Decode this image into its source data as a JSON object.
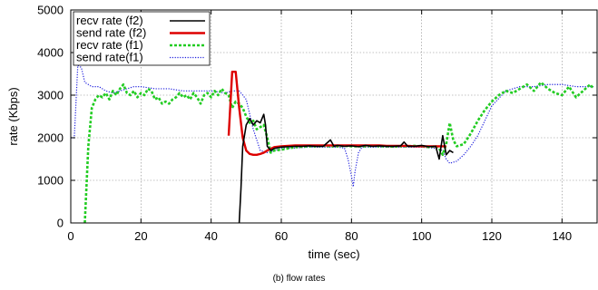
{
  "chart_data": {
    "type": "line",
    "title": "",
    "xlabel": "time (sec)",
    "ylabel": "rate (Kbps)",
    "xlim": [
      0,
      150
    ],
    "ylim": [
      0,
      5000
    ],
    "xticks": [
      0,
      20,
      40,
      60,
      80,
      100,
      120,
      140
    ],
    "yticks": [
      0,
      1000,
      2000,
      3000,
      4000,
      5000
    ],
    "grid": true,
    "legend_position": "top-left",
    "series": [
      {
        "name": "recv rate (f2)",
        "color": "#000000",
        "style": "solid",
        "x": [
          48,
          48.5,
          49,
          50,
          51,
          52,
          53,
          54,
          55,
          55.5,
          56,
          57,
          58,
          60,
          62,
          64,
          66,
          68,
          70,
          72,
          74,
          75,
          76,
          78,
          80,
          82,
          84,
          86,
          88,
          90,
          92,
          94,
          95,
          96,
          98,
          100,
          102,
          104,
          105,
          106,
          107,
          108,
          109
        ],
        "y": [
          0,
          800,
          1800,
          2300,
          2450,
          2300,
          2400,
          2350,
          2550,
          2300,
          1800,
          1700,
          1750,
          1780,
          1790,
          1800,
          1800,
          1810,
          1800,
          1800,
          1950,
          1800,
          1820,
          1800,
          1810,
          1790,
          1820,
          1800,
          1810,
          1800,
          1800,
          1810,
          1900,
          1800,
          1800,
          1820,
          1790,
          1800,
          1500,
          2050,
          1600,
          1700,
          1650
        ]
      },
      {
        "name": "send rate (f2)",
        "color": "#dd0000",
        "style": "solid",
        "x": [
          45,
          46,
          47,
          48,
          49,
          50,
          51,
          52,
          53,
          54,
          55,
          56,
          58,
          60,
          62,
          64,
          66,
          68,
          70,
          72,
          74,
          76,
          78,
          80,
          82,
          84,
          86,
          88,
          90,
          92,
          94,
          96,
          98,
          100,
          102,
          104,
          106,
          107
        ],
        "y": [
          2050,
          3550,
          3550,
          2700,
          2000,
          1700,
          1620,
          1600,
          1600,
          1620,
          1650,
          1700,
          1780,
          1800,
          1810,
          1820,
          1820,
          1820,
          1820,
          1820,
          1820,
          1820,
          1820,
          1820,
          1820,
          1820,
          1820,
          1820,
          1810,
          1810,
          1810,
          1810,
          1800,
          1800,
          1800,
          1800,
          1800,
          1800
        ]
      },
      {
        "name": "recv rate (f1)",
        "color": "#22cc22",
        "style": "dotted",
        "x": [
          4,
          5,
          6,
          7,
          8,
          9,
          10,
          11,
          12,
          13,
          14,
          15,
          16,
          17,
          18,
          19,
          20,
          21,
          22,
          23,
          24,
          25,
          26,
          27,
          28,
          29,
          30,
          31,
          32,
          33,
          34,
          35,
          36,
          37,
          38,
          39,
          40,
          41,
          42,
          43,
          44,
          45,
          46,
          47,
          48,
          49,
          50,
          51,
          52,
          53,
          54,
          55,
          56,
          57,
          58,
          60,
          62,
          64,
          66,
          68,
          70,
          72,
          74,
          76,
          78,
          80,
          82,
          84,
          86,
          88,
          90,
          92,
          94,
          96,
          98,
          100,
          102,
          104,
          105,
          106,
          107,
          108,
          109,
          110,
          112,
          114,
          116,
          118,
          120,
          122,
          124,
          126,
          128,
          130,
          132,
          134,
          136,
          138,
          140,
          142,
          144,
          146,
          148,
          149
        ],
        "y": [
          0,
          1800,
          2700,
          2900,
          3000,
          2950,
          3050,
          2900,
          3100,
          3000,
          3150,
          3250,
          3050,
          3000,
          3100,
          2950,
          3050,
          3000,
          3150,
          3100,
          2900,
          2950,
          2800,
          2850,
          2800,
          2900,
          2950,
          3050,
          2950,
          3000,
          2900,
          3050,
          2950,
          2800,
          3000,
          3050,
          2950,
          3100,
          3000,
          3150,
          3050,
          3000,
          2700,
          2850,
          2800,
          2700,
          2500,
          2350,
          2400,
          2200,
          2250,
          2300,
          2000,
          1650,
          1700,
          1720,
          1750,
          1780,
          1790,
          1800,
          1800,
          1810,
          1800,
          1800,
          1810,
          1800,
          1800,
          1800,
          1810,
          1800,
          1800,
          1790,
          1800,
          1800,
          1810,
          1800,
          1780,
          1800,
          1750,
          1600,
          1850,
          2350,
          1950,
          1800,
          1850,
          2100,
          2400,
          2650,
          2850,
          3000,
          3100,
          3050,
          3150,
          3250,
          3100,
          3300,
          3150,
          3050,
          3000,
          3200,
          2950,
          3100,
          3250,
          3150
        ]
      },
      {
        "name": "send rate(f1)",
        "color": "#2020dd",
        "style": "dotted",
        "x": [
          0,
          1,
          2,
          3,
          4,
          5,
          6,
          8,
          10,
          12,
          14,
          16,
          18,
          20,
          24,
          28,
          32,
          36,
          40,
          44,
          46,
          48,
          50,
          52,
          54,
          56,
          58,
          60,
          64,
          68,
          72,
          76,
          78,
          79,
          80,
          80.5,
          81,
          82,
          83,
          84,
          88,
          92,
          96,
          100,
          104,
          106,
          107,
          108,
          110,
          112,
          114,
          116,
          118,
          120,
          124,
          128,
          132,
          136,
          140,
          144,
          149
        ],
        "y": [
          2000,
          2000,
          3700,
          3650,
          3300,
          3250,
          3200,
          3200,
          3100,
          3050,
          3100,
          3150,
          3200,
          3200,
          3150,
          3150,
          3100,
          3100,
          3100,
          3050,
          3100,
          3100,
          2900,
          2200,
          1700,
          1650,
          1700,
          1750,
          1760,
          1780,
          1780,
          1780,
          1760,
          1500,
          1100,
          850,
          1200,
          1650,
          1780,
          1780,
          1780,
          1780,
          1780,
          1780,
          1750,
          1700,
          1500,
          1400,
          1450,
          1600,
          1800,
          2050,
          2400,
          2750,
          3100,
          3200,
          3200,
          3250,
          3250,
          3200,
          3200
        ]
      }
    ]
  },
  "caption": "(b) flow rates"
}
